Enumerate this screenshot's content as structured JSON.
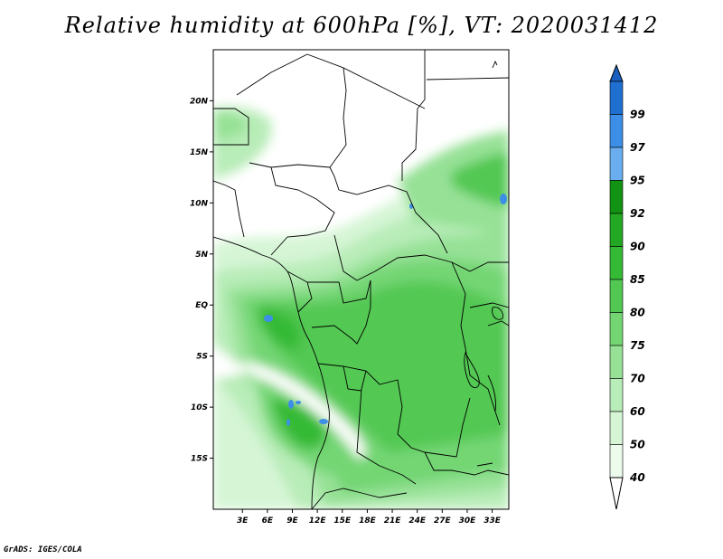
{
  "title": "Relative humidity at 600hPa [%], VT: 2020031412",
  "credit": "GrADS: IGES/COLA",
  "map": {
    "lat_range": [
      -20,
      25
    ],
    "lon_range": [
      -0.5,
      35
    ],
    "lat_ticks": [
      {
        "value": 20,
        "label": "20N"
      },
      {
        "value": 15,
        "label": "15N"
      },
      {
        "value": 10,
        "label": "10N"
      },
      {
        "value": 5,
        "label": "5N"
      },
      {
        "value": 0,
        "label": "EQ"
      },
      {
        "value": -5,
        "label": "5S"
      },
      {
        "value": -10,
        "label": "10S"
      },
      {
        "value": -15,
        "label": "15S"
      }
    ],
    "lon_ticks": [
      {
        "value": 3,
        "label": "3E"
      },
      {
        "value": 6,
        "label": "6E"
      },
      {
        "value": 9,
        "label": "9E"
      },
      {
        "value": 12,
        "label": "12E"
      },
      {
        "value": 15,
        "label": "15E"
      },
      {
        "value": 18,
        "label": "18E"
      },
      {
        "value": 21,
        "label": "21E"
      },
      {
        "value": 24,
        "label": "24E"
      },
      {
        "value": 27,
        "label": "27E"
      },
      {
        "value": 30,
        "label": "30E"
      },
      {
        "value": 33,
        "label": "33E"
      }
    ]
  },
  "colorbar": {
    "levels": [
      {
        "label": "99",
        "color": "#1f6fd0"
      },
      {
        "label": "97",
        "color": "#3c8ee6"
      },
      {
        "label": "95",
        "color": "#6aaef0"
      },
      {
        "label": "92",
        "color": "#139313"
      },
      {
        "label": "90",
        "color": "#23a823"
      },
      {
        "label": "85",
        "color": "#35ba35"
      },
      {
        "label": "80",
        "color": "#52c852"
      },
      {
        "label": "75",
        "color": "#73d673"
      },
      {
        "label": "70",
        "color": "#96e196"
      },
      {
        "label": "60",
        "color": "#b8ecb8"
      },
      {
        "label": "50",
        "color": "#d5f5d5"
      },
      {
        "label": "40",
        "color": "#ecfbec"
      }
    ],
    "top_color": "#1a5fc0",
    "bottom_color": "#ffffff"
  }
}
